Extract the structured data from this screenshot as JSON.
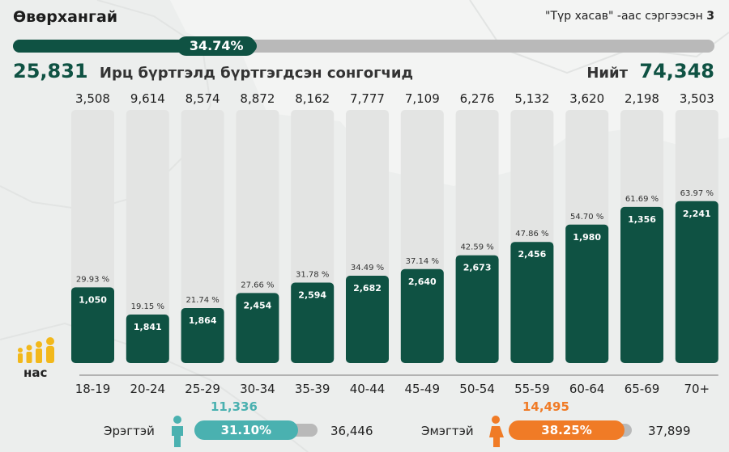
{
  "region_title": "Өвөрхангай",
  "sent_note_prefix": "\"Түр хасав\" -аас сэргээсэн",
  "sent_note_count": "3",
  "overall_percent": "34.74%",
  "overall_fraction": 0.3474,
  "registered_count": "25,831",
  "registered_label": "Ирц бүртгэлд бүртгэгдсэн сонгогчид",
  "total_label": "Нийт",
  "total_count": "74,348",
  "age_axis_label": "нас",
  "colors": {
    "dark_green": "#0f5243",
    "track_grey": "#b9b9b9",
    "bar_bg": "#e3e4e3",
    "teal": "#4ab1b0",
    "orange": "#f07b26"
  },
  "chart_data": {
    "type": "bar",
    "categories": [
      "18-19",
      "20-24",
      "25-29",
      "30-34",
      "35-39",
      "40-44",
      "45-49",
      "50-54",
      "55-59",
      "60-64",
      "65-69",
      "70+"
    ],
    "totals": [
      "3,508",
      "9,614",
      "8,574",
      "8,872",
      "8,162",
      "7,777",
      "7,109",
      "6,276",
      "5,132",
      "3,620",
      "2,198",
      "3,503"
    ],
    "registered": [
      "1,050",
      "1,841",
      "1,864",
      "2,454",
      "2,594",
      "2,682",
      "2,640",
      "2,673",
      "2,456",
      "1,980",
      "1,356",
      "2,241"
    ],
    "percent_labels": [
      "29.93 %",
      "19.15 %",
      "21.74 %",
      "27.66 %",
      "31.78 %",
      "34.49 %",
      "37.14 %",
      "42.59 %",
      "47.86 %",
      "54.70 %",
      "61.69 %",
      "63.97 %"
    ],
    "percent_values": [
      29.93,
      19.15,
      21.74,
      27.66,
      31.78,
      34.49,
      37.14,
      42.59,
      47.86,
      54.7,
      61.69,
      63.97
    ],
    "ylim": [
      0,
      100
    ]
  },
  "gender": {
    "male": {
      "label": "Эрэгтэй",
      "registered": "11,336",
      "percent": "31.10%",
      "fraction": 0.311,
      "total": "36,446",
      "icon": "male-person-icon"
    },
    "female": {
      "label": "Эмэгтэй",
      "registered": "14,495",
      "percent": "38.25%",
      "fraction": 0.3825,
      "total": "37,899",
      "icon": "female-person-icon"
    }
  }
}
